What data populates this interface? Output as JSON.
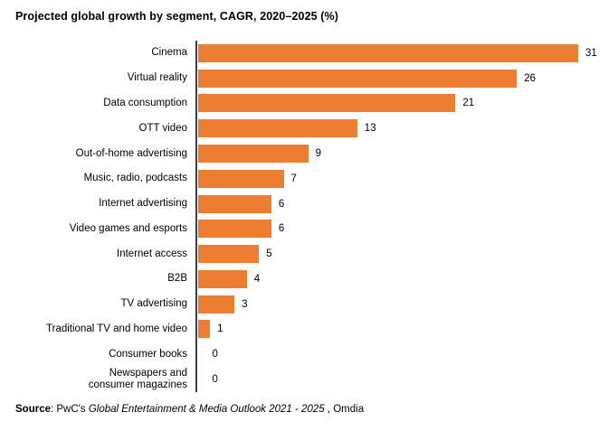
{
  "title": "Projected global growth by segment, CAGR, 2020–2025 (%)",
  "source": {
    "bold": "Source",
    "regular_1": ": PwC's ",
    "italic": "Global Entertainment & Media Outlook 2021 - 2025",
    "regular_2": " , Omdia"
  },
  "colors": {
    "bar": "#ED7D31",
    "axis": "#3F3F3F",
    "text": "#000000"
  },
  "chart_data": {
    "type": "bar",
    "orientation": "horizontal",
    "title": "Projected global growth by segment, CAGR, 2020–2025 (%)",
    "categories": [
      "Cinema",
      "Virtual reality",
      "Data consumption",
      "OTT video",
      "Out-of-home advertising",
      "Music, radio, podcasts",
      "Internet advertising",
      "Video games and esports",
      "Internet access",
      "B2B",
      "TV advertising",
      "Traditional TV and home video",
      "Consumer books",
      "Newspapers and\nconsumer magazines"
    ],
    "values": [
      31,
      26,
      21,
      13,
      9,
      7,
      6,
      6,
      5,
      4,
      3,
      1,
      0,
      0
    ],
    "xlim": [
      0,
      31
    ],
    "grid": false,
    "legend": false,
    "value_labels": "outside-end",
    "xlabel": "",
    "ylabel": ""
  }
}
